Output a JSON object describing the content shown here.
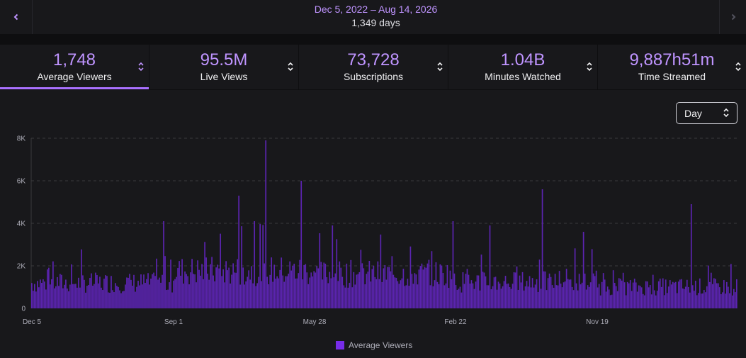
{
  "date_nav": {
    "range": "Dec 5, 2022 – Aug 14, 2026",
    "days": "1,349 days",
    "prev_icon": "chevron-left-icon",
    "next_icon": "chevron-right-icon"
  },
  "stats": [
    {
      "value": "1,748",
      "label": "Average Viewers",
      "active": true
    },
    {
      "value": "95.5M",
      "label": "Live Views",
      "active": false
    },
    {
      "value": "73,728",
      "label": "Subscriptions",
      "active": false
    },
    {
      "value": "1.04B",
      "label": "Minutes Watched",
      "active": false
    },
    {
      "value": "9,887h51m",
      "label": "Time Streamed",
      "active": false
    }
  ],
  "interval_select": {
    "value": "Day"
  },
  "colors": {
    "accent": "#bf94ff",
    "bar": "#5b24b0",
    "legend": "#772ce8",
    "background": "#18181b"
  },
  "chart_data": {
    "type": "bar",
    "title": "",
    "xlabel": "",
    "ylabel": "",
    "ylim": [
      0,
      8000
    ],
    "y_ticks": [
      "0",
      "2K",
      "4K",
      "6K",
      "8K"
    ],
    "x_tick_labels": [
      "Dec 5",
      "Sep 1",
      "May 28",
      "Feb 22",
      "Nov 19"
    ],
    "series": [
      {
        "name": "Average Viewers",
        "approx_daily_average_by_period": [
          {
            "period": "Dec 5 – Sep 1",
            "value": 1300
          },
          {
            "period": "Sep 1 – May 28",
            "value": 1900
          },
          {
            "period": "May 28 – Feb 22",
            "value": 1750
          },
          {
            "period": "Feb 22 – Nov 19",
            "value": 1350
          },
          {
            "period": "Nov 19 – end",
            "value": 1100
          }
        ],
        "peaks": [
          {
            "near": "between Sep 1 and May 28",
            "value": 7900
          },
          {
            "near": "just before May 28",
            "value": 6000
          },
          {
            "near": "between Feb 22 and Nov 19",
            "value": 5600
          },
          {
            "near": "end of range",
            "value": 4900
          }
        ]
      }
    ],
    "legend": [
      "Average Viewers"
    ],
    "legend_position": "bottom-center",
    "grid": true
  }
}
